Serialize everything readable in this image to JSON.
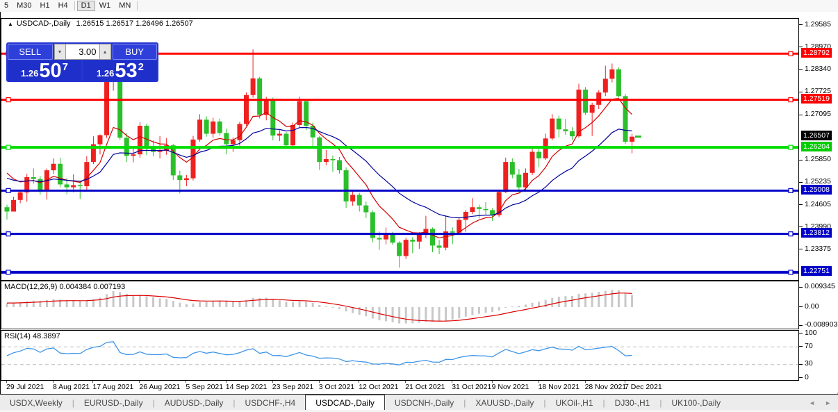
{
  "toolbar": {
    "timeframes": [
      "5",
      "M30",
      "H1",
      "H4",
      "D1",
      "W1",
      "MN"
    ],
    "active": "D1"
  },
  "window_title": {
    "symbol": "USDCAD-,Daily",
    "ohlc_line": "1.26515 1.26517 1.26496 1.26507"
  },
  "trade_panel": {
    "sell_label": "SELL",
    "buy_label": "BUY",
    "volume": "3.00",
    "sell_quote": {
      "prefix": "1.26",
      "big": "50",
      "sup": "7"
    },
    "buy_quote": {
      "prefix": "1.26",
      "big": "53",
      "sup": "2"
    }
  },
  "price_axis": {
    "ticks": [
      {
        "label": "1.29585",
        "value": 1.29585
      },
      {
        "label": "1.28970",
        "value": 1.2897
      },
      {
        "label": "1.28340",
        "value": 1.2834
      },
      {
        "label": "1.27725",
        "value": 1.27725
      },
      {
        "label": "1.27095",
        "value": 1.27095
      },
      {
        "label": "1.25850",
        "value": 1.2585
      },
      {
        "label": "1.25235",
        "value": 1.25235
      },
      {
        "label": "1.24605",
        "value": 1.24605
      },
      {
        "label": "1.23990",
        "value": 1.2399
      },
      {
        "label": "1.23375",
        "value": 1.23375
      }
    ],
    "current_price": {
      "label": "1.26507",
      "value": 1.26507,
      "bg": "#000000"
    }
  },
  "macd_panel": {
    "label": "MACD(12,26,9) 0.004384 0.007193",
    "ticks": [
      {
        "label": "0.009345",
        "value": 0.009345
      },
      {
        "label": "0.00",
        "value": 0
      },
      {
        "label": "-0.008903",
        "value": -0.008903
      }
    ],
    "histogram_color": "#c8c8c8",
    "signal_color": "#dd0000"
  },
  "rsi_panel": {
    "label": "RSI(14) 48.3897",
    "ticks": [
      {
        "label": "100",
        "value": 100
      },
      {
        "label": "70",
        "value": 70
      },
      {
        "label": "30",
        "value": 30
      },
      {
        "label": "0",
        "value": 0
      }
    ],
    "levels": [
      70,
      30
    ],
    "line_color": "#3d95e8"
  },
  "date_axis": {
    "labels": [
      "29 Jul 2021",
      "8 Aug 2021",
      "17 Aug 2021",
      "26 Aug 2021",
      "5 Sep 2021",
      "14 Sep 2021",
      "23 Sep 2021",
      "3 Oct 2021",
      "12 Oct 2021",
      "21 Oct 2021",
      "31 Oct 2021",
      "9 Nov 2021",
      "18 Nov 2021",
      "28 Nov 2021",
      "7 Dec 2021"
    ],
    "candle_indices": [
      0,
      7,
      13,
      20,
      27,
      33,
      40,
      47,
      53,
      60,
      67,
      73,
      80,
      87,
      93
    ]
  },
  "tabs": {
    "items": [
      {
        "label": "USDX,Weekly"
      },
      {
        "label": "EURUSD-,Daily"
      },
      {
        "label": "AUDUSD-,Daily"
      },
      {
        "label": "USDCHF-,H4"
      },
      {
        "label": "USDCAD-,Daily"
      },
      {
        "label": "USDCNH-,Daily"
      },
      {
        "label": "XAUUSD-,Daily"
      },
      {
        "label": "UKOil-,H1"
      },
      {
        "label": "DJ30-,H1"
      },
      {
        "label": "UK100-,Daily"
      }
    ],
    "active_index": 4
  },
  "chart_data": {
    "type": "candlestick",
    "symbol": "USDCAD-",
    "timeframe": "Daily",
    "ylim": [
      1.2254,
      1.2976
    ],
    "bull_color": "#ee2120",
    "bear_color": "#2bbf2b",
    "bid_marker": {
      "price": 1.265,
      "color": "#2bbf2b"
    },
    "hlines": [
      {
        "price": 1.28792,
        "label": "1.28792",
        "color": "#ff0000",
        "width": 3
      },
      {
        "price": 1.27519,
        "label": "1.27519",
        "color": "#ff0000",
        "width": 3
      },
      {
        "price": 1.26204,
        "label": "1.26204",
        "color": "#00dd00",
        "width": 4
      },
      {
        "price": 1.25008,
        "label": "1.25008",
        "color": "#0000c8",
        "width": 3
      },
      {
        "price": 1.23812,
        "label": "1.23812",
        "color": "#0000c8",
        "width": 3
      },
      {
        "price": 1.22751,
        "label": "1.22751",
        "color": "#0000c8",
        "width": 4
      }
    ],
    "overlays": [
      {
        "name": "ma-fast",
        "type": "ema",
        "period": 8,
        "seed": 1.258,
        "color": "#d40000"
      },
      {
        "name": "ma-slow",
        "type": "ema",
        "period": 20,
        "seed": 1.2545,
        "color": "#00009b"
      }
    ],
    "indicators": [
      {
        "name": "MACD",
        "fast": 12,
        "slow": 26,
        "signal": 9,
        "last_main": 0.004384,
        "last_signal": 0.007193
      },
      {
        "name": "RSI",
        "period": 14,
        "last_value": 48.3897
      }
    ],
    "candles": [
      [
        "2021-07-29",
        1.2455,
        1.2462,
        1.2421,
        1.2443
      ],
      [
        "2021-07-30",
        1.2443,
        1.2484,
        1.2443,
        1.2475
      ],
      [
        "2021-08-02",
        1.2475,
        1.2502,
        1.2466,
        1.2496
      ],
      [
        "2021-08-03",
        1.2496,
        1.2547,
        1.247,
        1.2538
      ],
      [
        "2021-08-04",
        1.2538,
        1.2562,
        1.252,
        1.2533
      ],
      [
        "2021-08-05",
        1.2533,
        1.2541,
        1.249,
        1.2501
      ],
      [
        "2021-08-06",
        1.2501,
        1.2562,
        1.2476,
        1.2557
      ],
      [
        "2021-08-09",
        1.2557,
        1.259,
        1.2547,
        1.2575
      ],
      [
        "2021-08-10",
        1.2575,
        1.2592,
        1.251,
        1.2518
      ],
      [
        "2021-08-11",
        1.2518,
        1.2536,
        1.2491,
        1.251
      ],
      [
        "2021-08-12",
        1.251,
        1.2546,
        1.2496,
        1.2516
      ],
      [
        "2021-08-13",
        1.2516,
        1.2526,
        1.2478,
        1.2513
      ],
      [
        "2021-08-16",
        1.2513,
        1.2596,
        1.25,
        1.258
      ],
      [
        "2021-08-17",
        1.258,
        1.2651,
        1.2574,
        1.2629
      ],
      [
        "2021-08-18",
        1.2629,
        1.2656,
        1.2601,
        1.2654
      ],
      [
        "2021-08-19",
        1.2654,
        1.2833,
        1.2646,
        1.2805
      ],
      [
        "2021-08-20",
        1.2805,
        1.2845,
        1.2777,
        1.2838
      ],
      [
        "2021-08-23",
        1.2838,
        1.2844,
        1.2641,
        1.2647
      ],
      [
        "2021-08-24",
        1.2647,
        1.266,
        1.258,
        1.2597
      ],
      [
        "2021-08-25",
        1.2597,
        1.2622,
        1.2579,
        1.2601
      ],
      [
        "2021-08-26",
        1.2601,
        1.269,
        1.2592,
        1.268
      ],
      [
        "2021-08-27",
        1.268,
        1.2686,
        1.2599,
        1.262
      ],
      [
        "2021-08-30",
        1.262,
        1.264,
        1.2596,
        1.2608
      ],
      [
        "2021-08-31",
        1.2608,
        1.2652,
        1.259,
        1.2611
      ],
      [
        "2021-09-01",
        1.2611,
        1.2646,
        1.26,
        1.2626
      ],
      [
        "2021-09-02",
        1.2626,
        1.263,
        1.253,
        1.2543
      ],
      [
        "2021-09-03",
        1.2543,
        1.2556,
        1.2493,
        1.253
      ],
      [
        "2021-09-06",
        1.253,
        1.2544,
        1.2513,
        1.2535
      ],
      [
        "2021-09-07",
        1.2535,
        1.2652,
        1.2529,
        1.2642
      ],
      [
        "2021-09-08",
        1.2642,
        1.2712,
        1.2636,
        1.2697
      ],
      [
        "2021-09-09",
        1.2697,
        1.2706,
        1.265,
        1.2658
      ],
      [
        "2021-09-10",
        1.2658,
        1.2702,
        1.2647,
        1.2692
      ],
      [
        "2021-09-13",
        1.2692,
        1.27,
        1.2653,
        1.266
      ],
      [
        "2021-09-14",
        1.266,
        1.2672,
        1.2601,
        1.2629
      ],
      [
        "2021-09-15",
        1.2629,
        1.2648,
        1.2608,
        1.264
      ],
      [
        "2021-09-16",
        1.264,
        1.2691,
        1.2625,
        1.2685
      ],
      [
        "2021-09-17",
        1.2685,
        1.2772,
        1.268,
        1.2765
      ],
      [
        "2021-09-20",
        1.2765,
        1.2891,
        1.2758,
        1.2811
      ],
      [
        "2021-09-21",
        1.2811,
        1.2815,
        1.27,
        1.271
      ],
      [
        "2021-09-22",
        1.271,
        1.276,
        1.2695,
        1.2752
      ],
      [
        "2021-09-23",
        1.2752,
        1.2758,
        1.264,
        1.2653
      ],
      [
        "2021-09-24",
        1.2653,
        1.2668,
        1.2638,
        1.2658
      ],
      [
        "2021-09-27",
        1.2658,
        1.2663,
        1.2619,
        1.2626
      ],
      [
        "2021-09-28",
        1.2626,
        1.2689,
        1.2621,
        1.2682
      ],
      [
        "2021-09-29",
        1.2682,
        1.276,
        1.2676,
        1.2748
      ],
      [
        "2021-09-30",
        1.2748,
        1.2752,
        1.2668,
        1.268
      ],
      [
        "2021-10-01",
        1.268,
        1.2689,
        1.2617,
        1.2648
      ],
      [
        "2021-10-04",
        1.2648,
        1.2652,
        1.2558,
        1.258
      ],
      [
        "2021-10-05",
        1.258,
        1.2613,
        1.2571,
        1.2588
      ],
      [
        "2021-10-06",
        1.2588,
        1.2598,
        1.2553,
        1.2585
      ],
      [
        "2021-10-07",
        1.2585,
        1.2594,
        1.2548,
        1.2557
      ],
      [
        "2021-10-08",
        1.2557,
        1.2565,
        1.2453,
        1.2471
      ],
      [
        "2021-10-11",
        1.2471,
        1.2502,
        1.2459,
        1.2489
      ],
      [
        "2021-10-12",
        1.2489,
        1.2495,
        1.2443,
        1.246
      ],
      [
        "2021-10-13",
        1.246,
        1.2471,
        1.2425,
        1.2441
      ],
      [
        "2021-10-14",
        1.2441,
        1.2446,
        1.2358,
        1.237
      ],
      [
        "2021-10-15",
        1.237,
        1.2388,
        1.2337,
        1.2366
      ],
      [
        "2021-10-18",
        1.2366,
        1.2399,
        1.2352,
        1.238
      ],
      [
        "2021-10-19",
        1.238,
        1.2387,
        1.2351,
        1.2357
      ],
      [
        "2021-10-20",
        1.2357,
        1.2361,
        1.2288,
        1.232
      ],
      [
        "2021-10-21",
        1.232,
        1.2371,
        1.2312,
        1.2365
      ],
      [
        "2021-10-22",
        1.2365,
        1.2372,
        1.2328,
        1.236
      ],
      [
        "2021-10-25",
        1.236,
        1.2386,
        1.234,
        1.238
      ],
      [
        "2021-10-26",
        1.238,
        1.2431,
        1.237,
        1.2395
      ],
      [
        "2021-10-27",
        1.2395,
        1.2399,
        1.2331,
        1.2349
      ],
      [
        "2021-10-28",
        1.2349,
        1.2365,
        1.2325,
        1.2343
      ],
      [
        "2021-10-29",
        1.2343,
        1.2431,
        1.2336,
        1.2388
      ],
      [
        "2021-11-01",
        1.2388,
        1.2399,
        1.2353,
        1.2385
      ],
      [
        "2021-11-02",
        1.2385,
        1.2425,
        1.2379,
        1.242
      ],
      [
        "2021-11-03",
        1.242,
        1.2448,
        1.2387,
        1.2442
      ],
      [
        "2021-11-04",
        1.2442,
        1.248,
        1.2436,
        1.2455
      ],
      [
        "2021-11-05",
        1.2455,
        1.2462,
        1.2424,
        1.245
      ],
      [
        "2021-11-08",
        1.245,
        1.2469,
        1.2435,
        1.2447
      ],
      [
        "2021-11-09",
        1.2447,
        1.2452,
        1.2417,
        1.2433
      ],
      [
        "2021-11-10",
        1.2433,
        1.2502,
        1.2428,
        1.2497
      ],
      [
        "2021-11-11",
        1.2497,
        1.2592,
        1.2494,
        1.258
      ],
      [
        "2021-11-12",
        1.258,
        1.259,
        1.2535,
        1.2545
      ],
      [
        "2021-11-15",
        1.2545,
        1.2561,
        1.2493,
        1.251
      ],
      [
        "2021-11-16",
        1.251,
        1.2562,
        1.2501,
        1.255
      ],
      [
        "2021-11-17",
        1.255,
        1.2617,
        1.2544,
        1.2608
      ],
      [
        "2021-11-18",
        1.2608,
        1.2616,
        1.2566,
        1.259
      ],
      [
        "2021-11-19",
        1.259,
        1.2658,
        1.2586,
        1.2645
      ],
      [
        "2021-11-22",
        1.2645,
        1.2712,
        1.264,
        1.27
      ],
      [
        "2021-11-23",
        1.27,
        1.2708,
        1.2648,
        1.267
      ],
      [
        "2021-11-24",
        1.267,
        1.2699,
        1.2655,
        1.2665
      ],
      [
        "2021-11-25",
        1.2665,
        1.2676,
        1.2641,
        1.2651
      ],
      [
        "2021-11-26",
        1.2651,
        1.2796,
        1.2647,
        1.278
      ],
      [
        "2021-11-29",
        1.278,
        1.2787,
        1.271,
        1.2716
      ],
      [
        "2021-11-30",
        1.2716,
        1.2744,
        1.2652,
        1.2738
      ],
      [
        "2021-12-01",
        1.2738,
        1.2778,
        1.2726,
        1.2772
      ],
      [
        "2021-12-02",
        1.2772,
        1.2846,
        1.2762,
        1.281
      ],
      [
        "2021-12-03",
        1.281,
        1.2852,
        1.28,
        1.2836
      ],
      [
        "2021-12-06",
        1.2836,
        1.2841,
        1.2758,
        1.2762
      ],
      [
        "2021-12-07",
        1.2762,
        1.2768,
        1.263,
        1.2636
      ],
      [
        "2021-12-08",
        1.2636,
        1.2658,
        1.2604,
        1.265
      ]
    ]
  }
}
